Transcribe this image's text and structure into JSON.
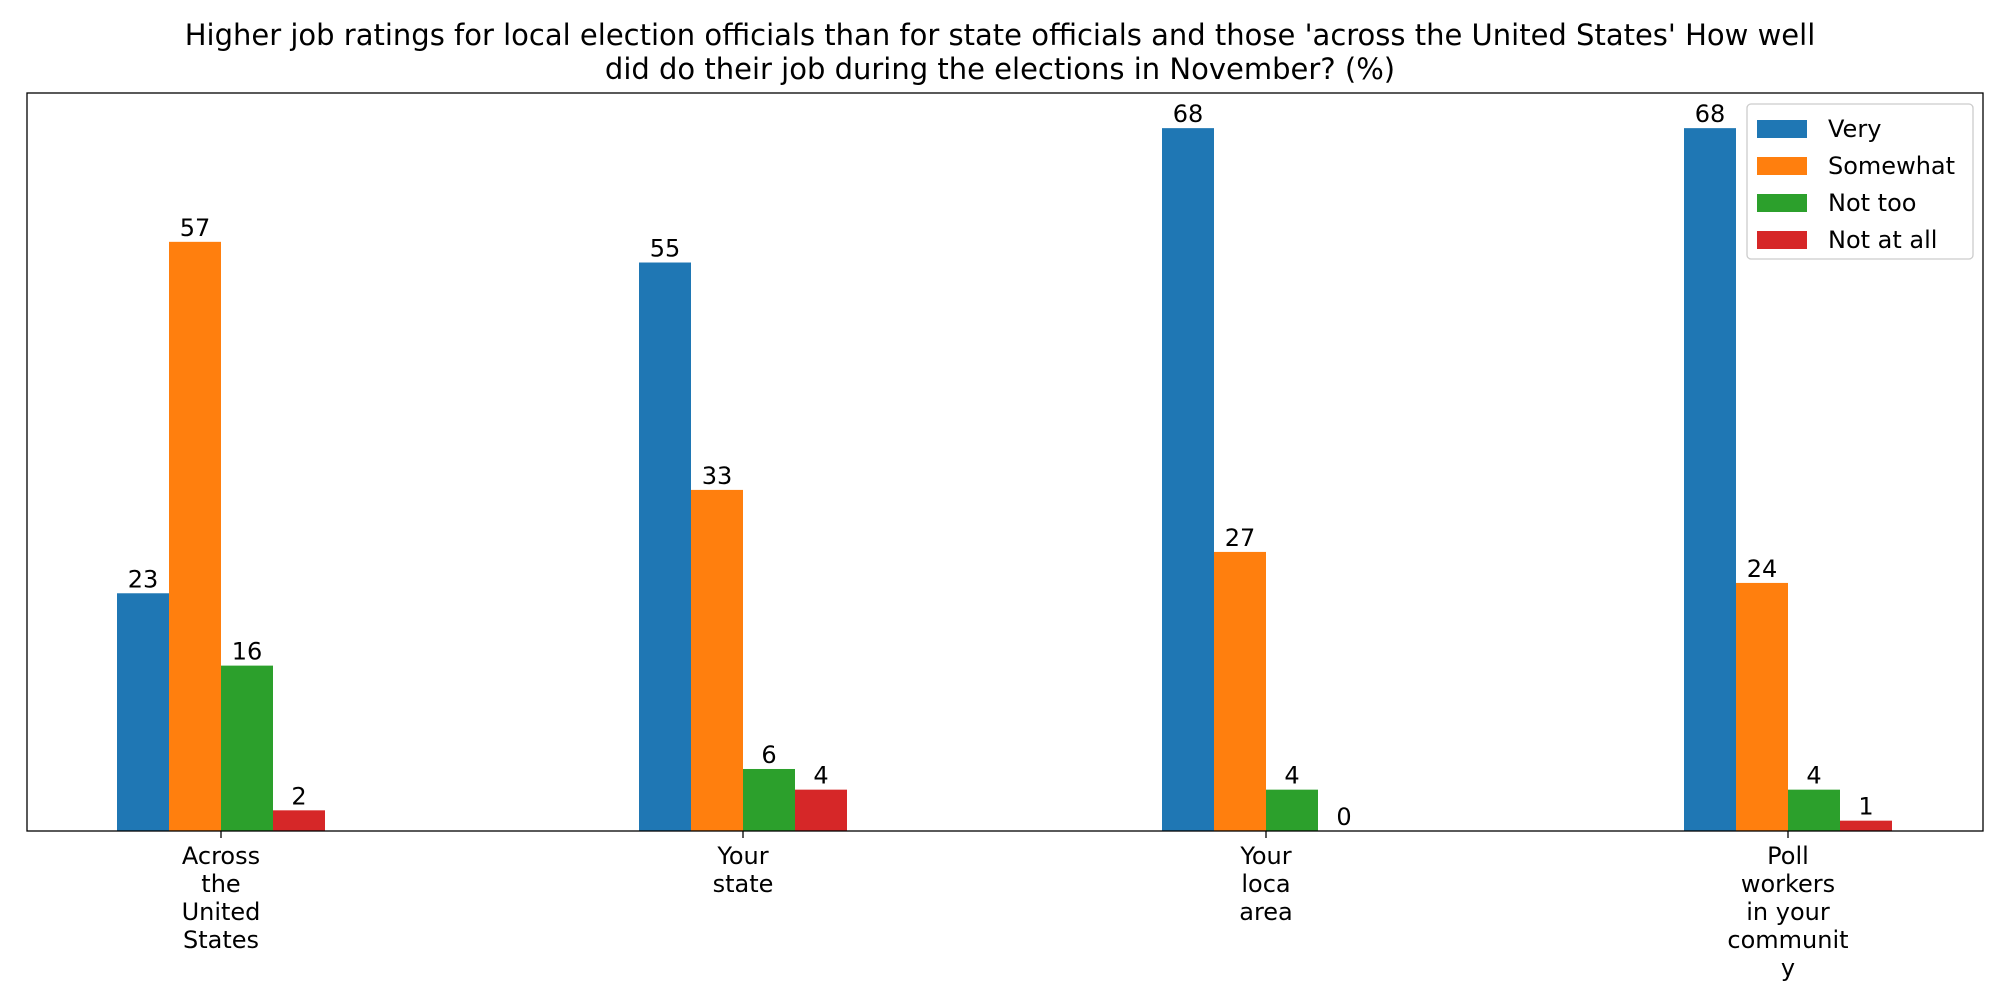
{
  "chart_data": {
    "type": "bar",
    "title": "Higher job ratings for local election officials than for state officials and those 'across the United States' How well did do their job during the elections in November? (%)",
    "title_lines": [
      "Higher job ratings for local election officials than for state officials and those 'across the United States' How well",
      "did do their job during the elections in November? (%)"
    ],
    "categories": [
      [
        "Across",
        "the",
        "United",
        "States"
      ],
      [
        "Your",
        "state"
      ],
      [
        "Your",
        "loca",
        "area"
      ],
      [
        "Poll",
        "workers",
        "in your",
        "communit",
        "y"
      ]
    ],
    "series": [
      {
        "name": "Very",
        "color": "#1f77b4",
        "values": [
          23,
          55,
          68,
          68
        ]
      },
      {
        "name": "Somewhat",
        "color": "#ff7f0e",
        "values": [
          57,
          33,
          27,
          24
        ]
      },
      {
        "name": "Not too",
        "color": "#2ca02c",
        "values": [
          16,
          6,
          4,
          4
        ]
      },
      {
        "name": "Not at all",
        "color": "#d62728",
        "values": [
          2,
          4,
          0,
          1
        ]
      }
    ],
    "ylim": [
      0,
      71.4
    ],
    "xlabel": "",
    "ylabel": "",
    "grid": false,
    "legend_position": "top-right",
    "y_axis_visible": false
  }
}
